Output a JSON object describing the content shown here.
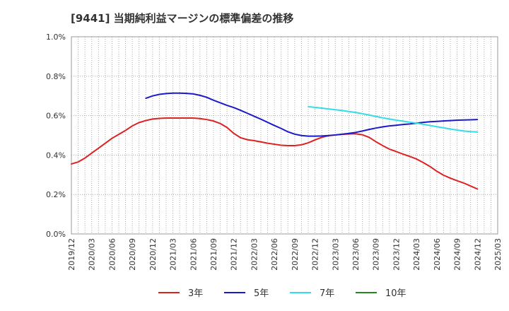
{
  "chart_data": {
    "type": "line",
    "title": "[9441]  当期純利益マージンの標準偏差の推移",
    "xlabel": "",
    "ylabel": "",
    "ylim": [
      0,
      1.0
    ],
    "y_ticks": [
      {
        "value": 0.0,
        "label": "0.0%"
      },
      {
        "value": 0.2,
        "label": "0.2%"
      },
      {
        "value": 0.4,
        "label": "0.4%"
      },
      {
        "value": 0.6,
        "label": "0.6%"
      },
      {
        "value": 0.8,
        "label": "0.8%"
      },
      {
        "value": 1.0,
        "label": "1.0%"
      }
    ],
    "x_ticks": [
      "2019/12",
      "2020/03",
      "2020/06",
      "2020/09",
      "2020/12",
      "2021/03",
      "2021/06",
      "2021/09",
      "2021/12",
      "2022/03",
      "2022/06",
      "2022/09",
      "2022/12",
      "2023/03",
      "2023/06",
      "2023/09",
      "2023/12",
      "2024/03",
      "2024/06",
      "2024/09",
      "2024/12",
      "2025/03"
    ],
    "grid": true,
    "legend_position": "bottom",
    "series": [
      {
        "name": "3年",
        "color": "#dd2222",
        "points": [
          [
            "2019/12",
            0.355
          ],
          [
            "2020/01",
            0.365
          ],
          [
            "2020/02",
            0.385
          ],
          [
            "2020/03",
            0.41
          ],
          [
            "2020/04",
            0.435
          ],
          [
            "2020/05",
            0.46
          ],
          [
            "2020/06",
            0.485
          ],
          [
            "2020/07",
            0.505
          ],
          [
            "2020/08",
            0.525
          ],
          [
            "2020/09",
            0.548
          ],
          [
            "2020/10",
            0.565
          ],
          [
            "2020/11",
            0.575
          ],
          [
            "2020/12",
            0.583
          ],
          [
            "2021/01",
            0.586
          ],
          [
            "2021/02",
            0.588
          ],
          [
            "2021/03",
            0.588
          ],
          [
            "2021/04",
            0.588
          ],
          [
            "2021/05",
            0.588
          ],
          [
            "2021/06",
            0.588
          ],
          [
            "2021/07",
            0.585
          ],
          [
            "2021/08",
            0.58
          ],
          [
            "2021/09",
            0.573
          ],
          [
            "2021/10",
            0.56
          ],
          [
            "2021/11",
            0.54
          ],
          [
            "2021/12",
            0.51
          ],
          [
            "2022/01",
            0.488
          ],
          [
            "2022/02",
            0.478
          ],
          [
            "2022/03",
            0.473
          ],
          [
            "2022/04",
            0.467
          ],
          [
            "2022/05",
            0.46
          ],
          [
            "2022/06",
            0.455
          ],
          [
            "2022/07",
            0.45
          ],
          [
            "2022/08",
            0.448
          ],
          [
            "2022/09",
            0.448
          ],
          [
            "2022/10",
            0.452
          ],
          [
            "2022/11",
            0.462
          ],
          [
            "2022/12",
            0.477
          ],
          [
            "2023/01",
            0.49
          ],
          [
            "2023/02",
            0.498
          ],
          [
            "2023/03",
            0.502
          ],
          [
            "2023/04",
            0.505
          ],
          [
            "2023/05",
            0.507
          ],
          [
            "2023/06",
            0.508
          ],
          [
            "2023/07",
            0.503
          ],
          [
            "2023/08",
            0.49
          ],
          [
            "2023/09",
            0.468
          ],
          [
            "2023/10",
            0.448
          ],
          [
            "2023/11",
            0.43
          ],
          [
            "2023/12",
            0.418
          ],
          [
            "2024/01",
            0.405
          ],
          [
            "2024/02",
            0.393
          ],
          [
            "2024/03",
            0.38
          ],
          [
            "2024/04",
            0.362
          ],
          [
            "2024/05",
            0.342
          ],
          [
            "2024/06",
            0.318
          ],
          [
            "2024/07",
            0.298
          ],
          [
            "2024/08",
            0.283
          ],
          [
            "2024/09",
            0.27
          ],
          [
            "2024/10",
            0.258
          ],
          [
            "2024/11",
            0.243
          ],
          [
            "2024/12",
            0.228
          ]
        ]
      },
      {
        "name": "5年",
        "color": "#1a1acc",
        "points": [
          [
            "2020/11",
            0.688
          ],
          [
            "2020/12",
            0.7
          ],
          [
            "2021/01",
            0.708
          ],
          [
            "2021/02",
            0.712
          ],
          [
            "2021/03",
            0.714
          ],
          [
            "2021/04",
            0.714
          ],
          [
            "2021/05",
            0.713
          ],
          [
            "2021/06",
            0.71
          ],
          [
            "2021/07",
            0.703
          ],
          [
            "2021/08",
            0.693
          ],
          [
            "2021/09",
            0.678
          ],
          [
            "2021/10",
            0.665
          ],
          [
            "2021/11",
            0.652
          ],
          [
            "2021/12",
            0.641
          ],
          [
            "2022/01",
            0.627
          ],
          [
            "2022/02",
            0.612
          ],
          [
            "2022/03",
            0.597
          ],
          [
            "2022/04",
            0.582
          ],
          [
            "2022/05",
            0.566
          ],
          [
            "2022/06",
            0.55
          ],
          [
            "2022/07",
            0.535
          ],
          [
            "2022/08",
            0.518
          ],
          [
            "2022/09",
            0.506
          ],
          [
            "2022/10",
            0.499
          ],
          [
            "2022/11",
            0.496
          ],
          [
            "2022/12",
            0.496
          ],
          [
            "2023/01",
            0.497
          ],
          [
            "2023/02",
            0.499
          ],
          [
            "2023/03",
            0.502
          ],
          [
            "2023/04",
            0.506
          ],
          [
            "2023/05",
            0.51
          ],
          [
            "2023/06",
            0.515
          ],
          [
            "2023/07",
            0.522
          ],
          [
            "2023/08",
            0.53
          ],
          [
            "2023/09",
            0.537
          ],
          [
            "2023/10",
            0.543
          ],
          [
            "2023/11",
            0.548
          ],
          [
            "2023/12",
            0.551
          ],
          [
            "2024/01",
            0.555
          ],
          [
            "2024/02",
            0.558
          ],
          [
            "2024/03",
            0.562
          ],
          [
            "2024/04",
            0.566
          ],
          [
            "2024/05",
            0.569
          ],
          [
            "2024/06",
            0.571
          ],
          [
            "2024/07",
            0.573
          ],
          [
            "2024/08",
            0.575
          ],
          [
            "2024/09",
            0.577
          ],
          [
            "2024/10",
            0.578
          ],
          [
            "2024/11",
            0.579
          ],
          [
            "2024/12",
            0.58
          ]
        ]
      },
      {
        "name": "7年",
        "color": "#33dde8",
        "points": [
          [
            "2022/11",
            0.645
          ],
          [
            "2022/12",
            0.642
          ],
          [
            "2023/01",
            0.638
          ],
          [
            "2023/02",
            0.634
          ],
          [
            "2023/03",
            0.63
          ],
          [
            "2023/04",
            0.626
          ],
          [
            "2023/05",
            0.621
          ],
          [
            "2023/06",
            0.616
          ],
          [
            "2023/07",
            0.61
          ],
          [
            "2023/08",
            0.603
          ],
          [
            "2023/09",
            0.596
          ],
          [
            "2023/10",
            0.589
          ],
          [
            "2023/11",
            0.583
          ],
          [
            "2023/12",
            0.577
          ],
          [
            "2024/01",
            0.572
          ],
          [
            "2024/02",
            0.567
          ],
          [
            "2024/03",
            0.562
          ],
          [
            "2024/04",
            0.556
          ],
          [
            "2024/05",
            0.55
          ],
          [
            "2024/06",
            0.544
          ],
          [
            "2024/07",
            0.538
          ],
          [
            "2024/08",
            0.532
          ],
          [
            "2024/09",
            0.527
          ],
          [
            "2024/10",
            0.522
          ],
          [
            "2024/11",
            0.519
          ],
          [
            "2024/12",
            0.517
          ]
        ]
      },
      {
        "name": "10年",
        "color": "#228822",
        "points": []
      }
    ]
  }
}
